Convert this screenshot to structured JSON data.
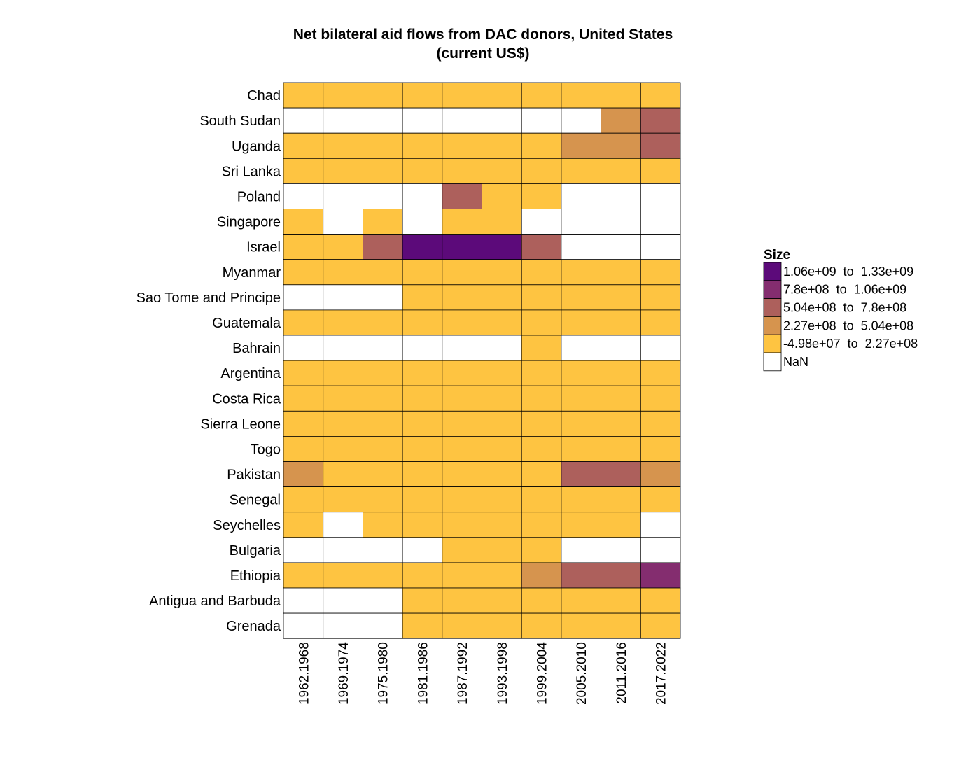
{
  "chart_data": {
    "type": "heatmap",
    "title": "Net bilateral aid flows from DAC donors, United States",
    "subtitle": "(current US$)",
    "columns": [
      "1962.1968",
      "1969.1974",
      "1975.1980",
      "1981.1986",
      "1987.1992",
      "1993.1998",
      "1999.2004",
      "2005.2010",
      "2011.2016",
      "2017.2022"
    ],
    "rows": [
      "Chad",
      "South Sudan",
      "Uganda",
      "Sri Lanka",
      "Poland",
      "Singapore",
      "Israel",
      "Myanmar",
      "Sao Tome and Principe",
      "Guatemala",
      "Bahrain",
      "Argentina",
      "Costa Rica",
      "Sierra Leone",
      "Togo",
      "Pakistan",
      "Senegal",
      "Seychelles",
      "Bulgaria",
      "Ethiopia",
      "Antigua and Barbuda",
      "Grenada"
    ],
    "legend": {
      "title": "Size",
      "placement": "right",
      "bins": [
        {
          "label": "1.06e+09  to  1.33e+09",
          "color": "#5c0a7a"
        },
        {
          "label": "7.8e+08  to  1.06e+09",
          "color": "#842d6f"
        },
        {
          "label": "5.04e+08  to  7.8e+08",
          "color": "#ad605c"
        },
        {
          "label": "2.27e+08  to  5.04e+08",
          "color": "#d6944e"
        },
        {
          "label": "-4.98e+07  to  2.27e+08",
          "color": "#fec441"
        },
        {
          "label": "NaN",
          "color": "#ffffff"
        }
      ]
    },
    "cells": [
      [
        4,
        4,
        4,
        4,
        4,
        4,
        4,
        4,
        4,
        4
      ],
      [
        5,
        5,
        5,
        5,
        5,
        5,
        5,
        5,
        3,
        2
      ],
      [
        4,
        4,
        4,
        4,
        4,
        4,
        4,
        3,
        3,
        2
      ],
      [
        4,
        4,
        4,
        4,
        4,
        4,
        4,
        4,
        4,
        4
      ],
      [
        5,
        5,
        5,
        5,
        2,
        4,
        4,
        5,
        5,
        5
      ],
      [
        4,
        5,
        4,
        5,
        4,
        4,
        5,
        5,
        5,
        5
      ],
      [
        4,
        4,
        2,
        0,
        0,
        0,
        2,
        5,
        5,
        5
      ],
      [
        4,
        4,
        4,
        4,
        4,
        4,
        4,
        4,
        4,
        4
      ],
      [
        5,
        5,
        5,
        4,
        4,
        4,
        4,
        4,
        4,
        4
      ],
      [
        4,
        4,
        4,
        4,
        4,
        4,
        4,
        4,
        4,
        4
      ],
      [
        5,
        5,
        5,
        5,
        5,
        5,
        4,
        5,
        5,
        5
      ],
      [
        4,
        4,
        4,
        4,
        4,
        4,
        4,
        4,
        4,
        4
      ],
      [
        4,
        4,
        4,
        4,
        4,
        4,
        4,
        4,
        4,
        4
      ],
      [
        4,
        4,
        4,
        4,
        4,
        4,
        4,
        4,
        4,
        4
      ],
      [
        4,
        4,
        4,
        4,
        4,
        4,
        4,
        4,
        4,
        4
      ],
      [
        3,
        4,
        4,
        4,
        4,
        4,
        4,
        2,
        2,
        3
      ],
      [
        4,
        4,
        4,
        4,
        4,
        4,
        4,
        4,
        4,
        4
      ],
      [
        4,
        5,
        4,
        4,
        4,
        4,
        4,
        4,
        4,
        5
      ],
      [
        5,
        5,
        5,
        5,
        4,
        4,
        4,
        5,
        5,
        5
      ],
      [
        4,
        4,
        4,
        4,
        4,
        4,
        3,
        2,
        2,
        1
      ],
      [
        5,
        5,
        5,
        4,
        4,
        4,
        4,
        4,
        4,
        4
      ],
      [
        5,
        5,
        5,
        4,
        4,
        4,
        4,
        4,
        4,
        4
      ]
    ]
  }
}
